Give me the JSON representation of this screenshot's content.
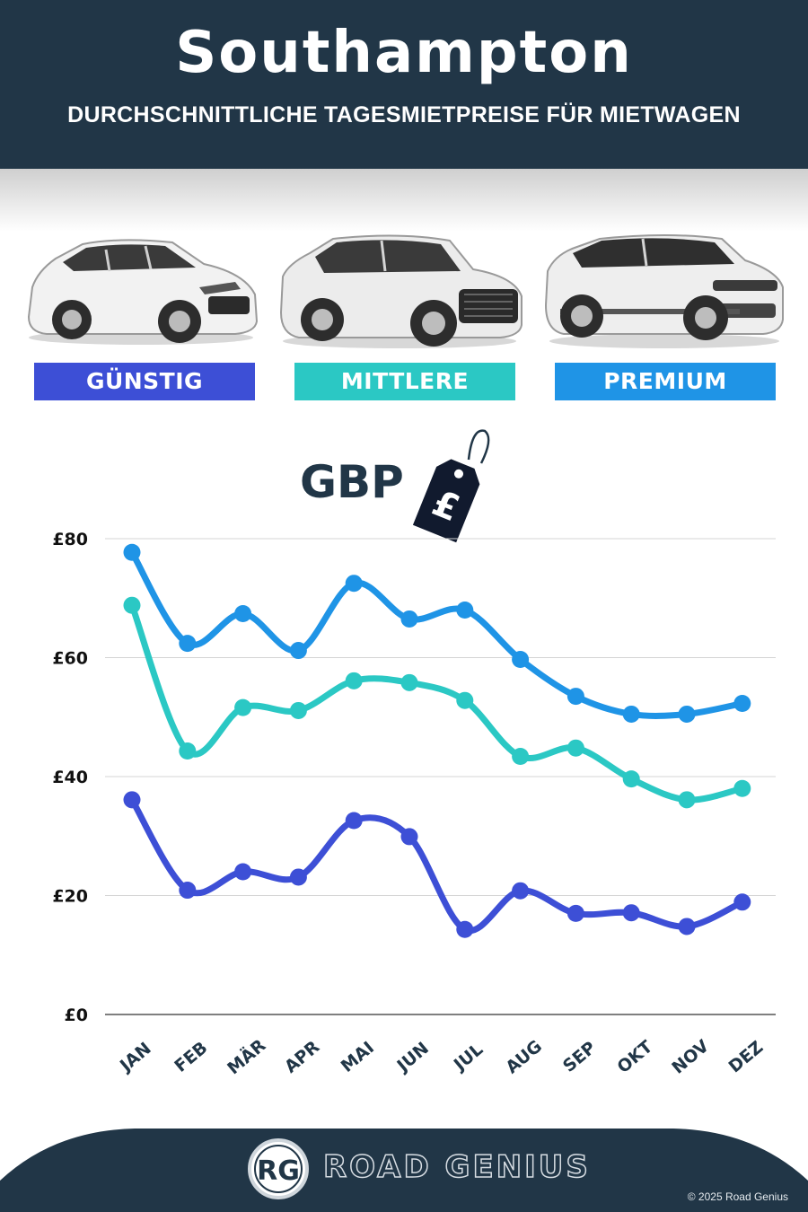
{
  "header": {
    "title": "Southampton",
    "subtitle": "DURCHSCHNITTLICHE TAGESMIETPREISE FÜR MIETWAGEN"
  },
  "categories": [
    {
      "label": "GÜNSTIG",
      "color": "#3d4fd6"
    },
    {
      "label": "MITTLERE",
      "color": "#2bc8c4"
    },
    {
      "label": "PREMIUM",
      "color": "#1f94e6"
    }
  ],
  "currency": {
    "label": "GBP",
    "tag_symbol": "£"
  },
  "chart_data": {
    "type": "line",
    "title": "",
    "xlabel": "",
    "ylabel": "",
    "ylim": [
      0,
      80
    ],
    "yticks": [
      0,
      20,
      40,
      60,
      80
    ],
    "ytick_labels": [
      "£0",
      "£20",
      "£40",
      "£60",
      "£80"
    ],
    "grid": true,
    "categories": [
      "JAN",
      "FEB",
      "MÄR",
      "APR",
      "MAI",
      "JUN",
      "JUL",
      "AUG",
      "SEP",
      "OKT",
      "NOV",
      "DEZ"
    ],
    "series": [
      {
        "name": "PREMIUM",
        "color": "#1f94e6",
        "values": [
          77.7,
          62.4,
          67.4,
          61.2,
          72.5,
          66.5,
          68.0,
          59.7,
          53.5,
          50.5,
          50.5,
          52.3
        ]
      },
      {
        "name": "MITTLERE",
        "color": "#2bc8c4",
        "values": [
          68.8,
          44.3,
          51.6,
          51.1,
          56.1,
          55.8,
          52.8,
          43.4,
          44.8,
          39.6,
          36.1,
          38.0
        ]
      },
      {
        "name": "GÜNSTIG",
        "color": "#3d4fd6",
        "values": [
          36.1,
          20.9,
          24.0,
          23.1,
          32.6,
          29.9,
          14.3,
          20.8,
          17.0,
          17.1,
          14.8,
          18.9
        ]
      }
    ]
  },
  "footer": {
    "logo_text": "RG",
    "brand": "ROAD GENIUS",
    "copyright": "© 2025 Road Genius"
  },
  "colors": {
    "header_bg": "#213647",
    "grid": "#d4d4d4",
    "axis_text": "#213647"
  }
}
